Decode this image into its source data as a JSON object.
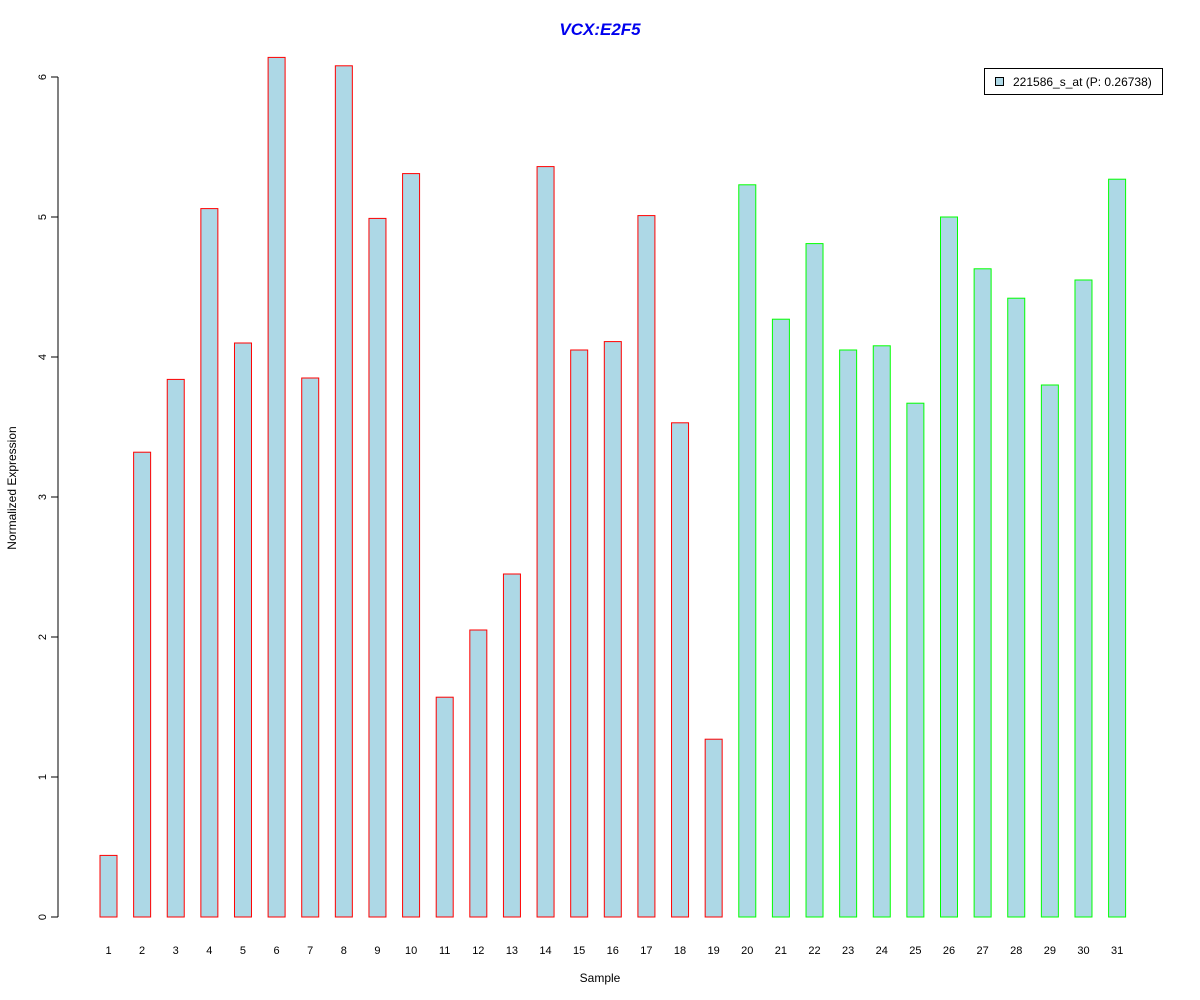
{
  "chart_data": {
    "type": "bar",
    "title": "VCX:E2F5",
    "xlabel": "Sample",
    "ylabel": "Normalized Expression",
    "categories": [
      "1",
      "2",
      "3",
      "4",
      "5",
      "6",
      "7",
      "8",
      "9",
      "10",
      "11",
      "12",
      "13",
      "14",
      "15",
      "16",
      "17",
      "18",
      "19",
      "20",
      "21",
      "22",
      "23",
      "24",
      "25",
      "26",
      "27",
      "28",
      "29",
      "30",
      "31"
    ],
    "values": [
      0.44,
      3.32,
      3.84,
      5.06,
      4.1,
      6.14,
      3.85,
      6.08,
      4.99,
      5.31,
      1.57,
      2.05,
      2.45,
      5.36,
      4.05,
      4.11,
      5.01,
      3.53,
      1.27,
      5.23,
      4.27,
      4.81,
      4.05,
      4.08,
      3.67,
      5.0,
      4.63,
      4.42,
      3.8,
      4.55,
      5.27
    ],
    "groups": [
      "red",
      "red",
      "red",
      "red",
      "red",
      "red",
      "red",
      "red",
      "red",
      "red",
      "red",
      "red",
      "red",
      "red",
      "red",
      "red",
      "red",
      "red",
      "red",
      "green",
      "green",
      "green",
      "green",
      "green",
      "green",
      "green",
      "green",
      "green",
      "green",
      "green",
      "green"
    ],
    "ylim": [
      0,
      6.2
    ],
    "yticks": [
      "0",
      "1",
      "2",
      "3",
      "4",
      "5",
      "6"
    ],
    "grid": false,
    "legend": {
      "placement": "top-right",
      "label": "221586_s_at (P: 0.26738)"
    },
    "colors": {
      "fill": "#add8e6",
      "red": "#ff0000",
      "green": "#00ff00",
      "axis": "#000000",
      "title": "#0000ee"
    }
  }
}
